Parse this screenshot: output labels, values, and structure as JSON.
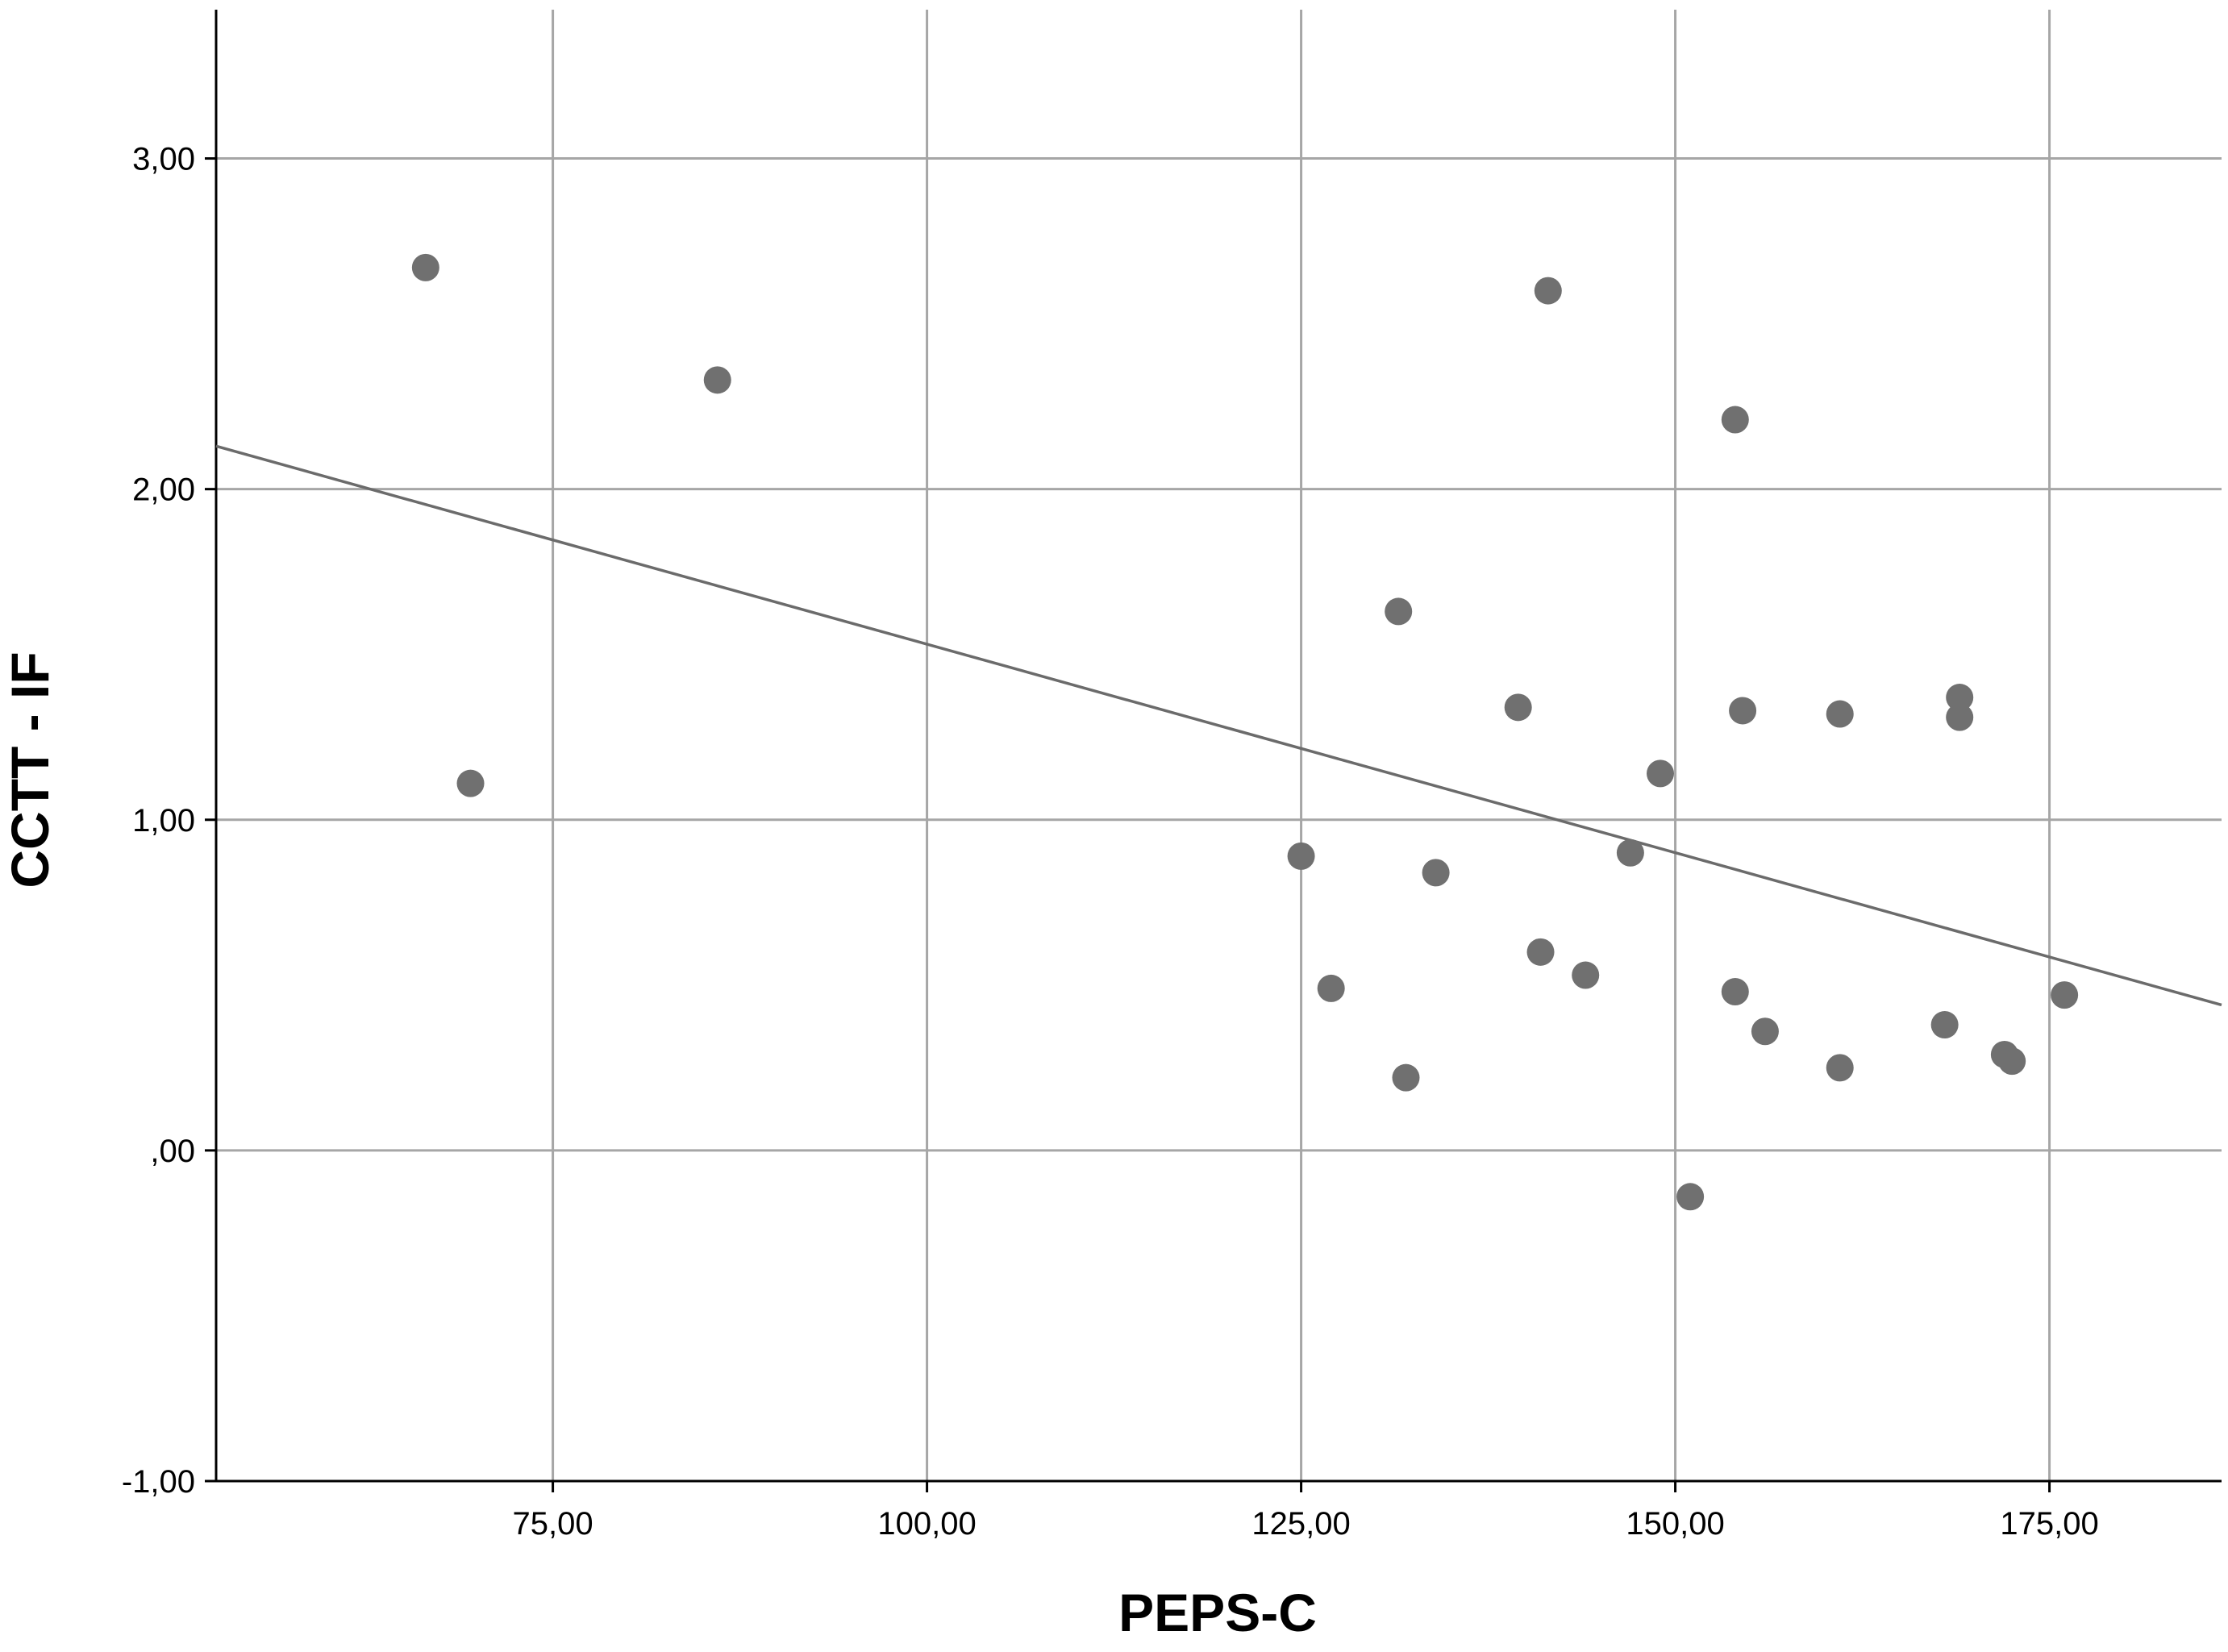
{
  "chart_data": {
    "type": "scatter",
    "title": "",
    "xlabel": "PEPS-C",
    "ylabel": "CCTT - IF",
    "xlim": [
      52.5,
      186.5
    ],
    "ylim": [
      -1.0,
      3.45
    ],
    "x_ticks": [
      75,
      100,
      125,
      150,
      175
    ],
    "x_tick_labels": [
      "75,00",
      "100,00",
      "125,00",
      "150,00",
      "175,00"
    ],
    "y_ticks": [
      -1,
      0,
      1,
      2,
      3
    ],
    "y_tick_labels": [
      "-1,00",
      ",00",
      "1,00",
      "2,00",
      "3,00"
    ],
    "grid": true,
    "point_color": "#707070",
    "grid_color": "#a6a6a6",
    "line_color": "#6b6b6b",
    "series": [
      {
        "points": [
          {
            "x": 66.5,
            "y": 2.67
          },
          {
            "x": 69.5,
            "y": 1.11
          },
          {
            "x": 86.0,
            "y": 2.33
          },
          {
            "x": 125.0,
            "y": 0.89
          },
          {
            "x": 127.0,
            "y": 0.49
          },
          {
            "x": 131.5,
            "y": 1.63
          },
          {
            "x": 132.0,
            "y": 0.22
          },
          {
            "x": 134.0,
            "y": 0.84
          },
          {
            "x": 139.5,
            "y": 1.34
          },
          {
            "x": 141.0,
            "y": 0.6
          },
          {
            "x": 141.5,
            "y": 2.6
          },
          {
            "x": 144.0,
            "y": 0.53
          },
          {
            "x": 147.0,
            "y": 0.9
          },
          {
            "x": 149.0,
            "y": 1.14
          },
          {
            "x": 151.0,
            "y": -0.14
          },
          {
            "x": 154.0,
            "y": 2.21
          },
          {
            "x": 154.0,
            "y": 0.48
          },
          {
            "x": 154.5,
            "y": 1.33
          },
          {
            "x": 156.0,
            "y": 0.36
          },
          {
            "x": 161.0,
            "y": 1.32
          },
          {
            "x": 161.0,
            "y": 0.25
          },
          {
            "x": 168.0,
            "y": 0.38
          },
          {
            "x": 169.0,
            "y": 1.37
          },
          {
            "x": 169.0,
            "y": 1.31
          },
          {
            "x": 172.0,
            "y": 0.29
          },
          {
            "x": 172.5,
            "y": 0.27
          },
          {
            "x": 176.0,
            "y": 0.47
          }
        ]
      }
    ],
    "fit_line": {
      "x": [
        52.5,
        186.5
      ],
      "y": [
        2.13,
        0.44
      ]
    }
  }
}
